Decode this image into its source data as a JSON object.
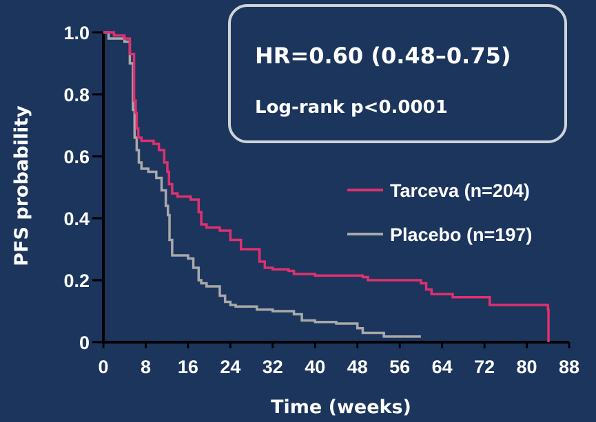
{
  "chart_data": {
    "type": "line",
    "step": true,
    "xlabel": "Time (weeks)",
    "ylabel": "PFS probability",
    "xlim": [
      0,
      88
    ],
    "ylim": [
      0,
      1.0
    ],
    "x_ticks": [
      0,
      8,
      16,
      24,
      32,
      40,
      48,
      56,
      64,
      72,
      80,
      88
    ],
    "x_tick_labels": [
      "0",
      "8",
      "16",
      "24",
      "32",
      "40",
      "48",
      "56",
      "64",
      "72",
      "80",
      "88"
    ],
    "y_ticks": [
      0,
      0.2,
      0.4,
      0.6,
      0.8,
      1.0
    ],
    "y_tick_labels": [
      "0",
      "0.2",
      "0.4",
      "0.6",
      "0.8",
      "1.0"
    ],
    "annotation": {
      "hr": "HR=0.60  (0.48–0.75)",
      "logrank": "Log-rank p<0.0001"
    },
    "legend_position": "right",
    "series": [
      {
        "name": "Tarceva (n=204)",
        "color": "#e0306e",
        "x": [
          0,
          2,
          4,
          5,
          5.8,
          6.1,
          6.3,
          6.6,
          7.2,
          9.5,
          10.5,
          11.5,
          12.1,
          12.4,
          13,
          14,
          16.5,
          18,
          18.5,
          19.5,
          22,
          24,
          26,
          29.5,
          30.5,
          32,
          35,
          36,
          40,
          49,
          50,
          60,
          61,
          62,
          66,
          73,
          84,
          84.1
        ],
        "y": [
          1.0,
          0.99,
          0.98,
          0.93,
          0.78,
          0.74,
          0.69,
          0.66,
          0.65,
          0.64,
          0.62,
          0.58,
          0.55,
          0.51,
          0.48,
          0.47,
          0.46,
          0.42,
          0.38,
          0.37,
          0.36,
          0.33,
          0.3,
          0.26,
          0.24,
          0.235,
          0.23,
          0.22,
          0.215,
          0.21,
          0.2,
          0.19,
          0.17,
          0.155,
          0.145,
          0.12,
          0.105,
          0.0
        ]
      },
      {
        "name": "Placebo (n=197)",
        "color": "#a9a9a9",
        "x": [
          0,
          1,
          4,
          5,
          5.6,
          5.9,
          6.3,
          6.7,
          7.2,
          8.5,
          10,
          11,
          11.8,
          12.2,
          12.5,
          13,
          16,
          17,
          18,
          18.5,
          19.5,
          22,
          23,
          24,
          25,
          29,
          32,
          36,
          37.5,
          40,
          44,
          48,
          49,
          53,
          60
        ],
        "y": [
          1.0,
          0.98,
          0.97,
          0.9,
          0.75,
          0.66,
          0.62,
          0.58,
          0.56,
          0.55,
          0.53,
          0.49,
          0.44,
          0.41,
          0.33,
          0.28,
          0.27,
          0.24,
          0.2,
          0.19,
          0.18,
          0.15,
          0.13,
          0.12,
          0.115,
          0.105,
          0.1,
          0.09,
          0.07,
          0.065,
          0.06,
          0.045,
          0.03,
          0.018,
          0.018
        ]
      }
    ]
  }
}
